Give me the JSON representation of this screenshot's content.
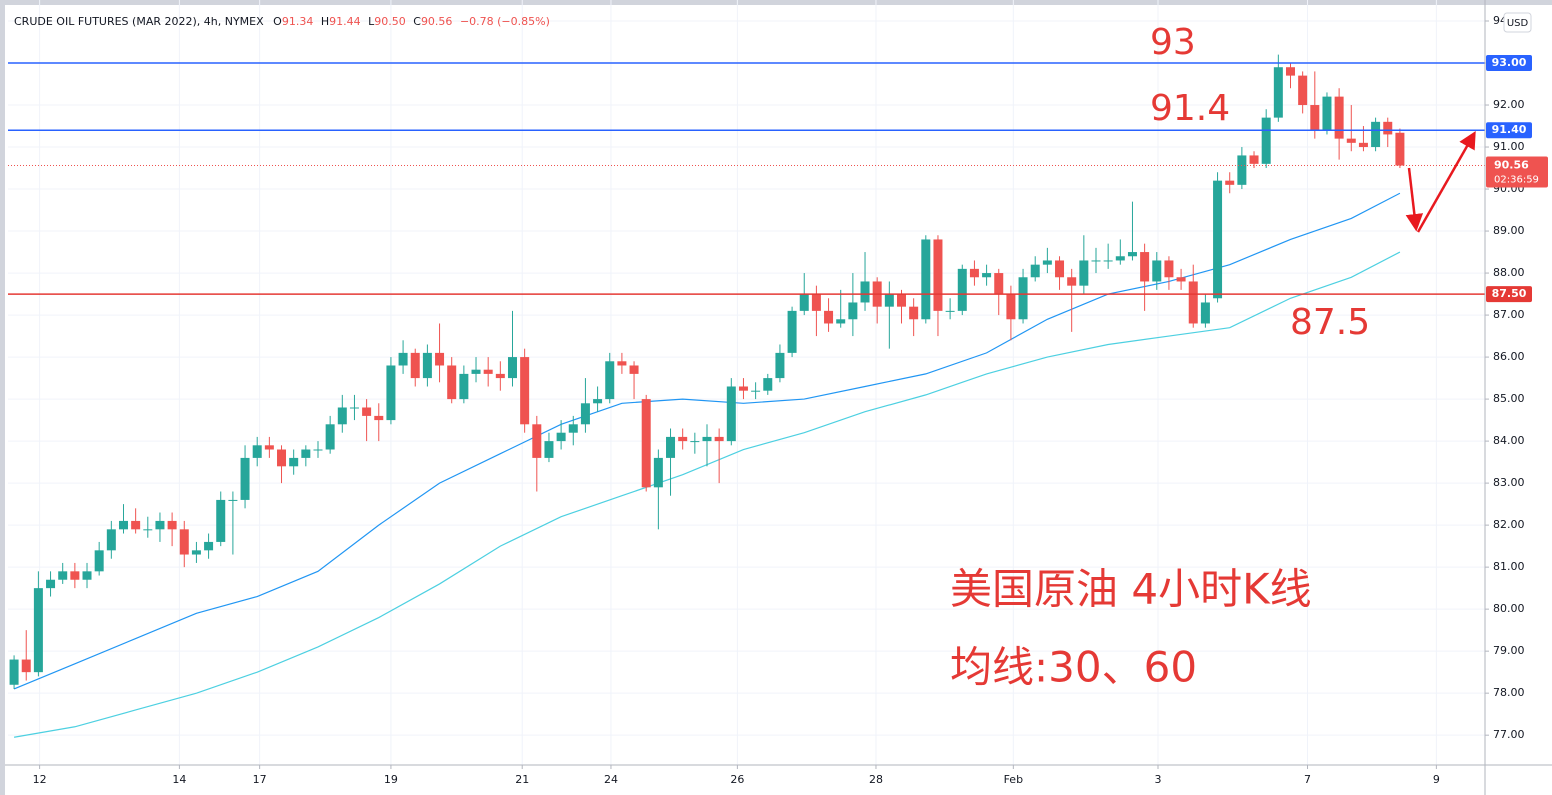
{
  "chart_data": {
    "type": "candlestick",
    "header": {
      "symbol": "CRUDE OIL FUTURES (MAR 2022), 4h, NYMEX",
      "ohlc": [
        {
          "key": "O",
          "value": "91.34"
        },
        {
          "key": "H",
          "value": "91.44"
        },
        {
          "key": "L",
          "value": "90.50"
        },
        {
          "key": "C",
          "value": "90.56"
        }
      ],
      "change": "−0.78 (−0.85%)"
    },
    "currency": "USD",
    "xlim": [
      -0.5,
      121
    ],
    "xticks": [
      {
        "value": 2.1,
        "label": "12"
      },
      {
        "value": 13.6,
        "label": "14"
      },
      {
        "value": 20.2,
        "label": "17"
      },
      {
        "value": 31,
        "label": "19"
      },
      {
        "value": 41.8,
        "label": "21"
      },
      {
        "value": 49.1,
        "label": "24"
      },
      {
        "value": 59.5,
        "label": "26"
      },
      {
        "value": 70.9,
        "label": "28"
      },
      {
        "value": 82.2,
        "label": "Feb"
      },
      {
        "value": 94.1,
        "label": "3"
      },
      {
        "value": 106.4,
        "label": "7"
      },
      {
        "value": 117,
        "label": "9"
      }
    ],
    "ylim": [
      76.29,
      94.5
    ],
    "yticks": [
      {
        "value": 77,
        "label": "77.00"
      },
      {
        "value": 78,
        "label": "78.00"
      },
      {
        "value": 79,
        "label": "79.00"
      },
      {
        "value": 80,
        "label": "80.00"
      },
      {
        "value": 81,
        "label": "81.00"
      },
      {
        "value": 82,
        "label": "82.00"
      },
      {
        "value": 83,
        "label": "83.00"
      },
      {
        "value": 84,
        "label": "84.00"
      },
      {
        "value": 85,
        "label": "85.00"
      },
      {
        "value": 86,
        "label": "86.00"
      },
      {
        "value": 87,
        "label": "87.00"
      },
      {
        "value": 88,
        "label": "88.00"
      },
      {
        "value": 89,
        "label": "89.00"
      },
      {
        "value": 90,
        "label": "90.00"
      },
      {
        "value": 91,
        "label": "91.00"
      },
      {
        "value": 92,
        "label": "92.00"
      },
      {
        "value": 93,
        "label": "93.00"
      },
      {
        "value": 94,
        "label": "94.00"
      }
    ],
    "grid": true,
    "candles": {
      "up_color": "#26a69a",
      "down_color": "#ef5350",
      "open": [
        78.2,
        78.8,
        78.5,
        80.5,
        80.7,
        80.9,
        80.7,
        80.9,
        81.4,
        81.9,
        82.1,
        81.9,
        81.9,
        82.1,
        81.9,
        81.3,
        81.4,
        81.6,
        82.6,
        82.6,
        83.6,
        83.9,
        83.8,
        83.4,
        83.6,
        83.8,
        83.8,
        84.4,
        84.8,
        84.8,
        84.6,
        84.5,
        85.8,
        86.1,
        85.5,
        86.1,
        85.8,
        85.0,
        85.6,
        85.7,
        85.6,
        85.5,
        86.0,
        84.4,
        83.6,
        84.0,
        84.2,
        84.4,
        84.9,
        85.0,
        85.9,
        85.8,
        85.0,
        82.9,
        83.6,
        84.1,
        84.0,
        84.0,
        84.1,
        84.0,
        85.3,
        85.2,
        85.2,
        85.5,
        86.1,
        87.1,
        87.5,
        87.1,
        86.8,
        86.9,
        87.3,
        87.8,
        87.2,
        87.5,
        87.2,
        86.9,
        88.8,
        87.1,
        87.1,
        88.1,
        87.9,
        88.0,
        87.5,
        86.9,
        87.9,
        88.2,
        88.3,
        87.9,
        87.7,
        88.3,
        88.3,
        88.3,
        88.4,
        88.5,
        87.8,
        88.3,
        87.9,
        87.8,
        86.8,
        87.4,
        90.2,
        90.1,
        90.8,
        90.6,
        91.7,
        92.9,
        92.7,
        92.0,
        91.4,
        92.2,
        91.2,
        91.1,
        91.0,
        91.6,
        91.34
      ],
      "high": [
        78.9,
        79.5,
        80.9,
        80.9,
        81.1,
        81.1,
        81.1,
        81.6,
        82.1,
        82.5,
        82.4,
        82.2,
        82.3,
        82.3,
        82.1,
        81.6,
        81.8,
        82.8,
        82.8,
        83.9,
        84.1,
        84.1,
        83.9,
        83.8,
        83.9,
        84.0,
        84.6,
        85.1,
        85.1,
        85.0,
        84.9,
        86.0,
        86.4,
        86.2,
        86.3,
        86.8,
        86.0,
        85.8,
        86.0,
        86.0,
        85.9,
        87.1,
        86.2,
        84.6,
        84.2,
        84.5,
        84.6,
        85.5,
        85.3,
        86.1,
        86.1,
        85.9,
        85.1,
        83.8,
        84.3,
        84.3,
        84.2,
        84.4,
        84.3,
        85.5,
        85.5,
        85.4,
        85.6,
        86.3,
        87.2,
        88.0,
        87.7,
        87.4,
        87.6,
        88.0,
        88.5,
        87.9,
        87.8,
        87.6,
        87.4,
        88.9,
        88.9,
        87.4,
        88.2,
        88.3,
        88.2,
        88.1,
        87.7,
        88.1,
        88.4,
        88.6,
        88.4,
        88.1,
        88.9,
        88.6,
        88.7,
        88.8,
        89.7,
        88.7,
        88.5,
        88.4,
        88.1,
        88.2,
        87.5,
        90.4,
        90.4,
        91.0,
        90.9,
        91.9,
        93.2,
        93.0,
        92.8,
        92.8,
        92.3,
        92.4,
        92.0,
        91.5,
        91.7,
        91.7,
        91.44
      ],
      "low": [
        78.1,
        78.3,
        78.4,
        80.3,
        80.6,
        80.5,
        80.5,
        80.8,
        81.2,
        81.8,
        81.8,
        81.7,
        81.6,
        81.5,
        81.0,
        81.1,
        81.2,
        81.5,
        81.3,
        82.4,
        83.4,
        83.6,
        83.0,
        83.2,
        83.4,
        83.6,
        83.7,
        84.2,
        84.5,
        84.0,
        84.0,
        84.4,
        85.6,
        85.3,
        85.3,
        85.4,
        84.9,
        84.9,
        85.4,
        85.3,
        85.2,
        85.3,
        84.2,
        82.8,
        83.5,
        83.8,
        83.9,
        84.2,
        84.7,
        84.9,
        85.6,
        85.0,
        82.8,
        81.9,
        82.7,
        83.8,
        83.7,
        83.4,
        83.0,
        83.9,
        85.0,
        85.0,
        85.1,
        85.4,
        86.0,
        87.0,
        86.5,
        86.6,
        86.7,
        86.5,
        87.1,
        86.8,
        86.2,
        86.8,
        86.5,
        86.8,
        86.5,
        86.9,
        87.0,
        87.7,
        87.7,
        87.0,
        86.4,
        86.8,
        87.8,
        88.0,
        87.6,
        86.6,
        87.5,
        88.0,
        88.1,
        88.2,
        88.3,
        87.1,
        87.6,
        87.6,
        87.6,
        86.7,
        86.7,
        87.3,
        89.9,
        90.0,
        90.5,
        90.5,
        91.6,
        92.4,
        91.8,
        91.2,
        91.3,
        90.7,
        90.9,
        90.9,
        90.9,
        91.0,
        90.5
      ],
      "close": [
        78.8,
        78.5,
        80.5,
        80.7,
        80.9,
        80.7,
        80.9,
        81.4,
        81.9,
        82.1,
        81.9,
        81.9,
        82.1,
        81.9,
        81.3,
        81.4,
        81.6,
        82.6,
        82.6,
        83.6,
        83.9,
        83.8,
        83.4,
        83.6,
        83.8,
        83.8,
        84.4,
        84.8,
        84.8,
        84.6,
        84.5,
        85.8,
        86.1,
        85.5,
        86.1,
        85.8,
        85.0,
        85.6,
        85.7,
        85.6,
        85.5,
        86.0,
        84.4,
        83.6,
        84.0,
        84.2,
        84.4,
        84.9,
        85.0,
        85.9,
        85.8,
        85.6,
        82.9,
        83.6,
        84.1,
        84.0,
        84.0,
        84.1,
        84.0,
        85.3,
        85.2,
        85.2,
        85.5,
        86.1,
        87.1,
        87.5,
        87.1,
        86.8,
        86.9,
        87.3,
        87.8,
        87.2,
        87.5,
        87.2,
        86.9,
        88.8,
        87.1,
        87.1,
        88.1,
        87.9,
        88.0,
        87.5,
        86.9,
        87.9,
        88.2,
        88.3,
        87.9,
        87.7,
        88.3,
        88.3,
        88.3,
        88.4,
        88.5,
        87.8,
        88.3,
        87.9,
        87.8,
        86.8,
        87.3,
        90.2,
        90.1,
        90.8,
        90.6,
        91.7,
        92.9,
        92.7,
        92.0,
        91.4,
        92.2,
        91.2,
        91.1,
        91.0,
        91.6,
        91.3,
        90.56
      ]
    },
    "moving_averages": [
      {
        "color": "#2196f3",
        "x": [
          0,
          5,
          10,
          15,
          20,
          25,
          30,
          35,
          40,
          45,
          50,
          55,
          60,
          65,
          70,
          75,
          80,
          85,
          90,
          95,
          100,
          105,
          110,
          114
        ],
        "values": [
          78.1,
          78.7,
          79.3,
          79.9,
          80.3,
          80.9,
          82.0,
          83.0,
          83.7,
          84.4,
          84.9,
          85.0,
          84.9,
          85.0,
          85.3,
          85.6,
          86.1,
          86.9,
          87.5,
          87.8,
          88.2,
          88.8,
          89.3,
          89.9
        ]
      },
      {
        "color": "#4dd0e1",
        "x": [
          0,
          5,
          10,
          15,
          20,
          25,
          30,
          35,
          40,
          45,
          50,
          55,
          60,
          65,
          70,
          75,
          80,
          85,
          90,
          95,
          100,
          105,
          110,
          114
        ],
        "values": [
          76.95,
          77.2,
          77.6,
          78.0,
          78.5,
          79.1,
          79.8,
          80.6,
          81.5,
          82.2,
          82.7,
          83.2,
          83.8,
          84.2,
          84.7,
          85.1,
          85.6,
          86.0,
          86.3,
          86.5,
          86.7,
          87.4,
          87.9,
          88.5
        ]
      }
    ],
    "levels": [
      {
        "value": 93,
        "label": "93.00",
        "color": "#2962ff"
      },
      {
        "value": 91.4,
        "label": "91.40",
        "color": "#2962ff"
      },
      {
        "value": 87.5,
        "label": "87.50",
        "color": "#e53935"
      }
    ],
    "last_price": {
      "value": 90.56,
      "label": "90.56",
      "countdown": "02:36:59",
      "color": "#ef5350"
    },
    "annotations": [
      {
        "text": "93"
      },
      {
        "text": "91.4"
      },
      {
        "text": "87.5"
      }
    ],
    "notes": [
      "美国原油 4小时K线",
      "均线:30、60"
    ]
  }
}
